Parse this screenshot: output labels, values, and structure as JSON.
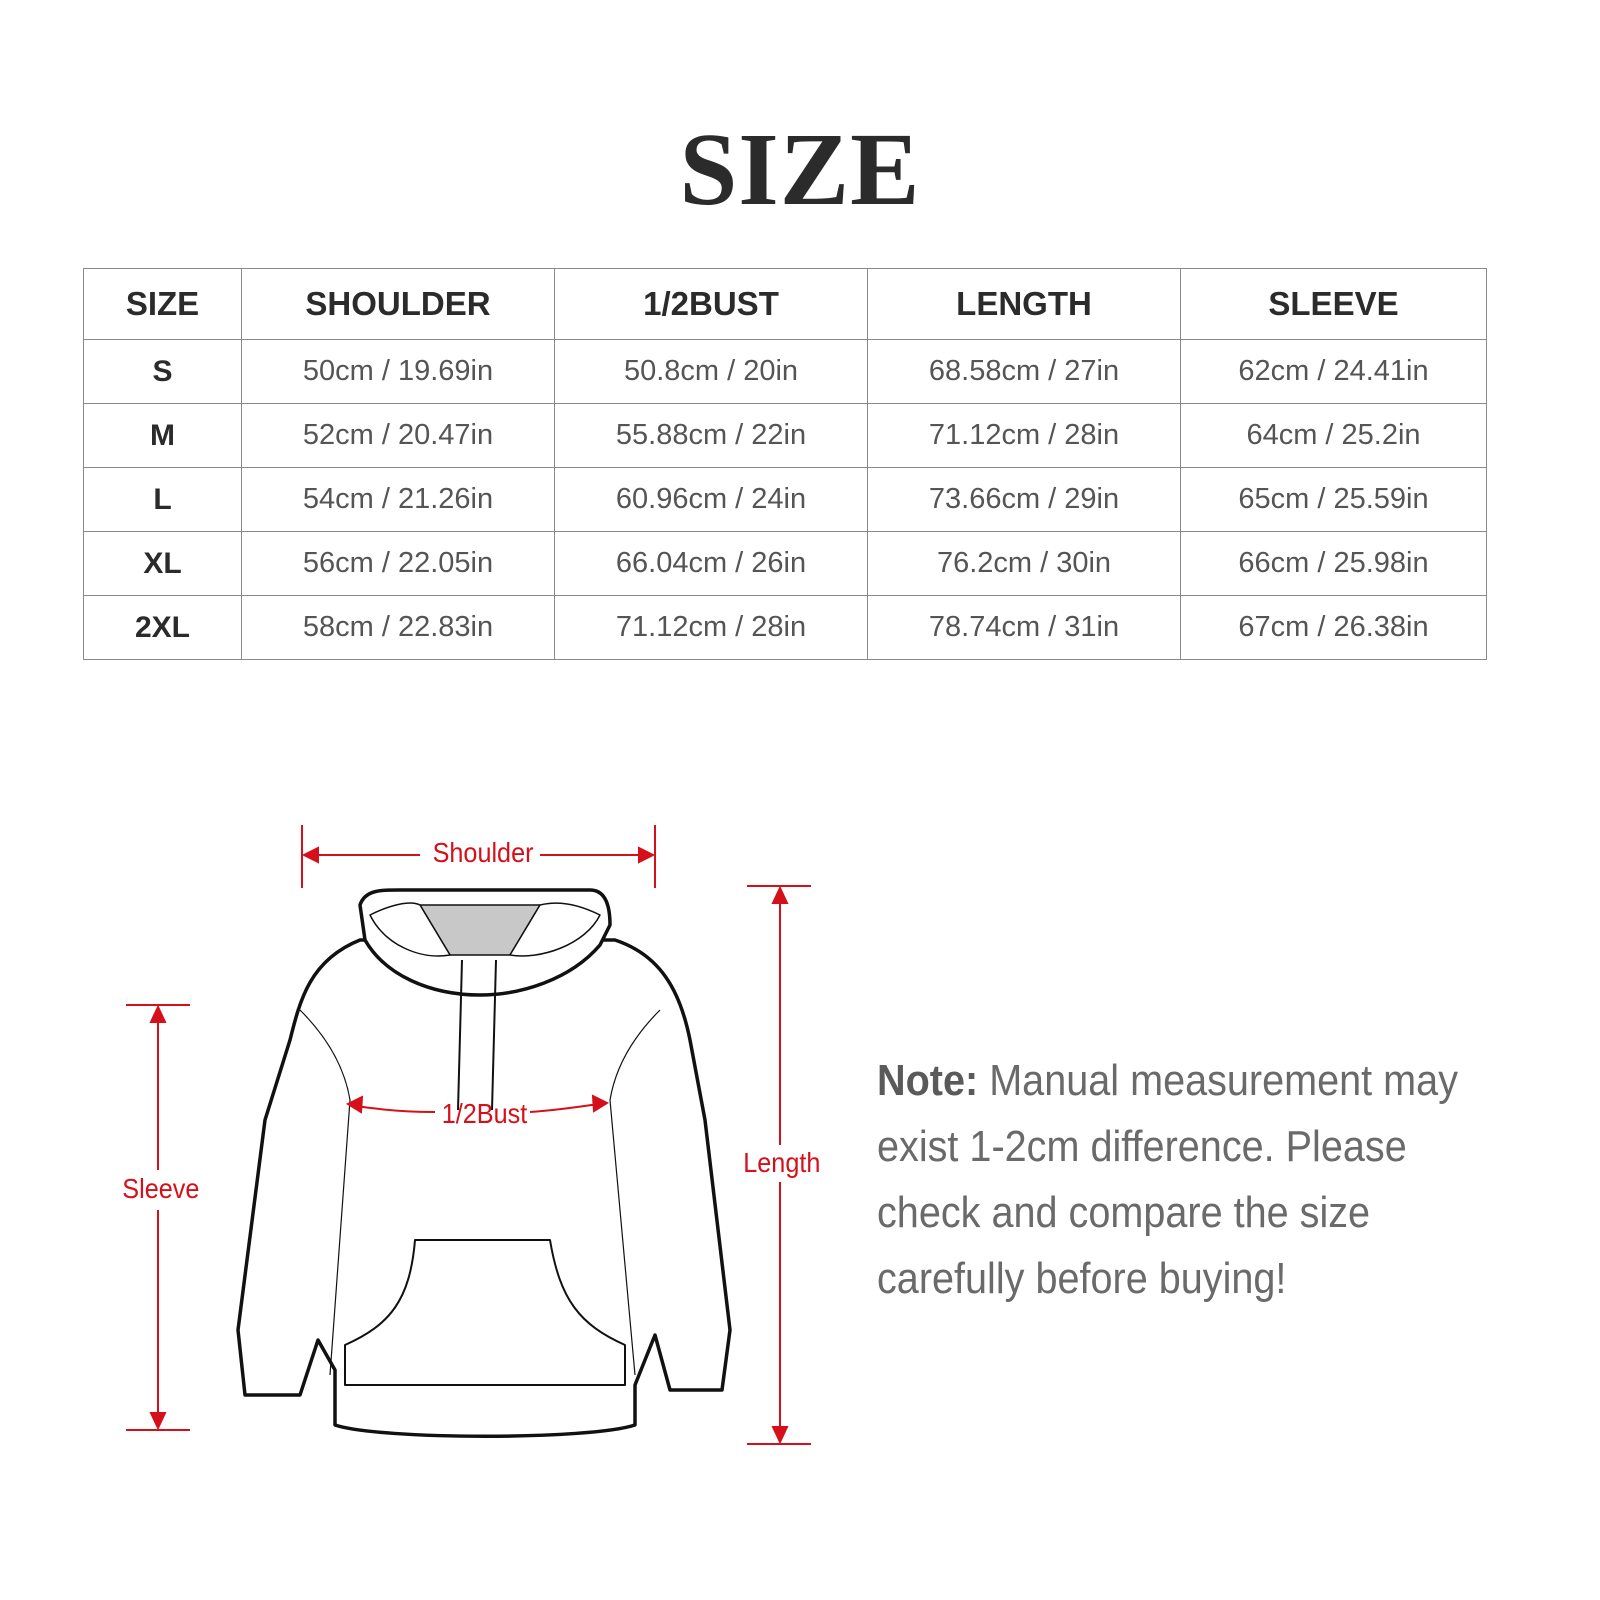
{
  "title": "SIZE",
  "table": {
    "headers": [
      "SIZE",
      "SHOULDER",
      "1/2BUST",
      "LENGTH",
      "SLEEVE"
    ],
    "rows": [
      [
        "S",
        "50cm / 19.69in",
        "50.8cm / 20in",
        "68.58cm / 27in",
        "62cm / 24.41in"
      ],
      [
        "M",
        "52cm / 20.47in",
        "55.88cm / 22in",
        "71.12cm / 28in",
        "64cm / 25.2in"
      ],
      [
        "L",
        "54cm / 21.26in",
        "60.96cm / 24in",
        "73.66cm / 29in",
        "65cm / 25.59in"
      ],
      [
        "XL",
        "56cm / 22.05in",
        "66.04cm / 26in",
        "76.2cm / 30in",
        "66cm / 25.98in"
      ],
      [
        "2XL",
        "58cm / 22.83in",
        "71.12cm / 28in",
        "78.74cm / 31in",
        "67cm / 26.38in"
      ]
    ]
  },
  "diagram": {
    "shoulder": "Shoulder",
    "bust": "1/2Bust",
    "sleeve": "Sleeve",
    "length": "Length",
    "accent_color": "#d5101b"
  },
  "note": {
    "label": "Note:",
    "text": " Manual measurement may exist 1-2cm difference. Please check and compare the size carefully before buying!"
  }
}
